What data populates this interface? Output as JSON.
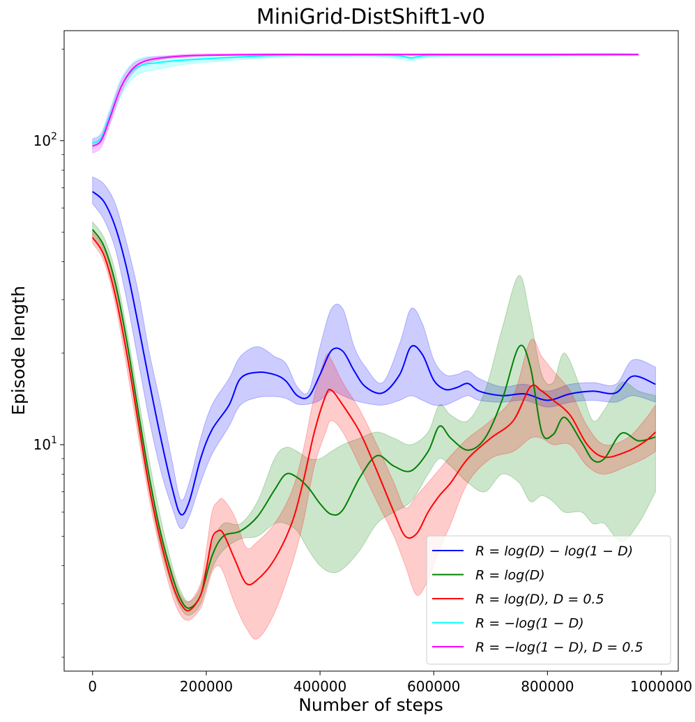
{
  "chart_data": {
    "type": "line",
    "title": "MiniGrid-DistShift1-v0",
    "xlabel": "Number of steps",
    "ylabel": "Episode length",
    "xlim": [
      -50000,
      1030000
    ],
    "ylim": [
      1.8,
      230
    ],
    "yscale": "log",
    "x_ticks": [
      0,
      200000,
      400000,
      600000,
      800000,
      1000000
    ],
    "y_ticks": [
      {
        "value": 10,
        "label_base": "10",
        "label_exp": "1"
      },
      {
        "value": 100,
        "label_base": "10",
        "label_exp": "2"
      }
    ],
    "legend_position": "lower right",
    "grid": false,
    "series": [
      {
        "name": "R = log(D) − log(1 − D)",
        "color": "#0000ff",
        "x": [
          0,
          20000,
          40000,
          60000,
          80000,
          100000,
          120000,
          140000,
          155000,
          170000,
          190000,
          210000,
          240000,
          260000,
          290000,
          320000,
          340000,
          360000,
          380000,
          400000,
          420000,
          440000,
          460000,
          480000,
          510000,
          540000,
          560000,
          580000,
          600000,
          620000,
          640000,
          660000,
          680000,
          720000,
          760000,
          800000,
          840000,
          880000,
          920000,
          950000,
          990000
        ],
        "y": [
          68,
          63,
          52,
          38,
          25,
          16,
          10.5,
          7.2,
          5.9,
          6.5,
          9.0,
          11.2,
          13.5,
          16.5,
          17.3,
          17.0,
          16.2,
          14.5,
          14.4,
          17.0,
          20.4,
          20.3,
          17.5,
          15.5,
          14.8,
          17.0,
          21.0,
          19.8,
          16.3,
          15.2,
          15.4,
          15.9,
          15.0,
          14.5,
          14.7,
          14.0,
          14.7,
          15.0,
          14.8,
          16.8,
          15.8
        ],
        "lower": [
          62,
          55,
          44,
          30,
          19,
          12,
          8.2,
          6.2,
          5.3,
          5.8,
          7.5,
          9.3,
          11.5,
          13.5,
          14.3,
          14.4,
          14.2,
          13.6,
          13.6,
          14.0,
          15.0,
          14.5,
          14.0,
          13.7,
          13.5,
          14.0,
          14.5,
          14.0,
          13.5,
          13.5,
          14.0,
          14.5,
          14.0,
          13.8,
          14.0,
          13.3,
          13.8,
          14.0,
          13.8,
          14.5,
          13.8
        ],
        "upper": [
          76,
          72,
          62,
          46,
          32,
          20,
          13.5,
          8.8,
          6.6,
          7.5,
          10.5,
          13.5,
          16.5,
          19.5,
          21.0,
          19.5,
          18.5,
          15.5,
          15.0,
          21.0,
          28.0,
          28.0,
          21.0,
          18.0,
          16.0,
          21.5,
          28.0,
          25.0,
          19.0,
          17.0,
          17.0,
          17.5,
          16.5,
          15.5,
          15.8,
          15.0,
          15.8,
          16.0,
          15.8,
          19.0,
          18.0
        ]
      },
      {
        "name": "R = log(D)",
        "color": "#008000",
        "x": [
          0,
          20000,
          40000,
          60000,
          80000,
          100000,
          120000,
          140000,
          155000,
          170000,
          190000,
          210000,
          230000,
          260000,
          290000,
          320000,
          340000,
          360000,
          380000,
          400000,
          420000,
          440000,
          470000,
          500000,
          530000,
          560000,
          590000,
          610000,
          630000,
          660000,
          690000,
          720000,
          750000,
          770000,
          790000,
          810000,
          830000,
          860000,
          880000,
          900000,
          930000,
          960000,
          990000
        ],
        "y": [
          51,
          45,
          34,
          22,
          13,
          7.8,
          5.1,
          3.7,
          3.1,
          2.9,
          3.2,
          4.3,
          5.0,
          5.2,
          5.8,
          7.1,
          8.0,
          7.8,
          7.2,
          6.4,
          5.9,
          6.1,
          7.8,
          9.2,
          8.5,
          8.2,
          9.5,
          11.5,
          10.5,
          9.6,
          10.5,
          14.0,
          21.0,
          18.0,
          11.0,
          10.8,
          12.3,
          10.2,
          8.9,
          9.0,
          10.9,
          10.3,
          10.6
        ],
        "lower": [
          48,
          42,
          31,
          20,
          11.5,
          7.0,
          4.6,
          3.4,
          2.9,
          2.75,
          3.0,
          3.9,
          4.5,
          4.9,
          5.0,
          5.5,
          5.5,
          5.2,
          4.5,
          4.0,
          3.8,
          3.9,
          4.5,
          5.5,
          6.0,
          6.5,
          8.0,
          9.0,
          8.5,
          7.5,
          7.0,
          8.0,
          7.5,
          6.5,
          6.8,
          6.5,
          6.0,
          6.0,
          5.5,
          5.5,
          4.8,
          5.5,
          7.0
        ],
        "upper": [
          54,
          48,
          37,
          24,
          14.5,
          8.8,
          5.7,
          4.0,
          3.3,
          3.05,
          3.4,
          4.7,
          5.5,
          5.5,
          6.5,
          9.0,
          9.8,
          9.5,
          9.0,
          9.0,
          9.5,
          10.0,
          10.5,
          11.0,
          10.5,
          10.0,
          11.0,
          13.5,
          12.5,
          12.0,
          15.0,
          24.0,
          36.0,
          26.0,
          17.0,
          16.0,
          20.0,
          15.0,
          12.0,
          13.0,
          16.0,
          15.0,
          14.5
        ]
      },
      {
        "name": "R = log(D), D = 0.5",
        "color": "#ff0000",
        "x": [
          0,
          20000,
          40000,
          60000,
          80000,
          100000,
          120000,
          140000,
          155000,
          170000,
          190000,
          200000,
          210000,
          220000,
          230000,
          250000,
          270000,
          290000,
          320000,
          350000,
          370000,
          390000,
          410000,
          420000,
          440000,
          470000,
          500000,
          530000,
          550000,
          570000,
          590000,
          610000,
          630000,
          660000,
          700000,
          740000,
          770000,
          790000,
          810000,
          840000,
          870000,
          900000,
          940000,
          970000,
          990000
        ],
        "y": [
          48,
          42,
          31,
          20,
          12,
          7.2,
          4.8,
          3.5,
          3.0,
          2.85,
          3.2,
          3.9,
          4.9,
          5.2,
          5.1,
          4.2,
          3.5,
          3.6,
          4.2,
          5.5,
          7.5,
          11.0,
          14.5,
          15.1,
          13.5,
          11.0,
          8.2,
          6.0,
          5.0,
          5.1,
          6.0,
          6.8,
          7.5,
          9.0,
          10.5,
          12.0,
          15.5,
          15.0,
          14.0,
          12.5,
          10.0,
          9.1,
          9.5,
          10.2,
          11.0
        ],
        "lower": [
          46,
          40,
          29,
          18,
          10.8,
          6.6,
          4.4,
          3.2,
          2.75,
          2.65,
          2.9,
          3.3,
          3.8,
          4.0,
          3.8,
          3.0,
          2.5,
          2.3,
          2.8,
          4.0,
          5.5,
          8.5,
          11.0,
          12.0,
          11.0,
          8.5,
          6.5,
          5.0,
          4.0,
          3.2,
          3.6,
          4.5,
          5.5,
          7.5,
          9.0,
          9.5,
          10.5,
          10.5,
          10.0,
          10.0,
          8.5,
          8.0,
          8.5,
          9.0,
          9.5
        ],
        "upper": [
          50,
          44,
          33,
          22,
          13.2,
          7.8,
          5.2,
          3.8,
          3.2,
          3.05,
          3.5,
          4.5,
          6.0,
          6.5,
          6.6,
          5.8,
          4.6,
          4.8,
          5.5,
          7.0,
          9.5,
          14.5,
          19.5,
          19.0,
          16.0,
          13.0,
          10.0,
          7.5,
          6.2,
          6.8,
          7.5,
          8.3,
          9.2,
          10.5,
          12.0,
          14.5,
          22.0,
          19.5,
          17.5,
          15.0,
          11.5,
          10.0,
          10.5,
          12.0,
          13.5
        ]
      },
      {
        "name": "R = −log(1 − D)",
        "color": "#00ffff",
        "x": [
          0,
          15000,
          30000,
          50000,
          70000,
          90000,
          110000,
          130000,
          160000,
          200000,
          250000,
          300000,
          350000,
          400000,
          450000,
          500000,
          540000,
          560000,
          580000,
          620000,
          700000,
          800000,
          900000,
          960000
        ],
        "y": [
          98,
          102,
          120,
          150,
          170,
          178,
          180,
          182,
          184,
          186,
          188,
          190,
          191,
          191,
          191,
          191,
          190,
          187,
          190,
          191,
          191,
          191,
          192,
          192
        ],
        "lower": [
          94,
          98,
          114,
          140,
          160,
          168,
          171,
          174,
          178,
          181,
          184,
          187,
          189,
          189,
          189,
          189,
          186,
          183,
          187,
          189,
          189,
          189,
          190,
          191
        ],
        "upper": [
          102,
          106,
          126,
          160,
          180,
          188,
          189,
          190,
          190,
          191,
          192,
          193,
          193,
          193,
          193,
          193,
          193,
          191,
          193,
          193,
          193,
          193,
          194,
          193
        ]
      },
      {
        "name": "R = −log(1 − D), D = 0.5",
        "color": "#ff00ff",
        "x": [
          0,
          15000,
          30000,
          50000,
          70000,
          90000,
          110000,
          130000,
          160000,
          200000,
          300000,
          400000,
          500000,
          600000,
          700000,
          800000,
          900000,
          960000
        ],
        "y": [
          96,
          100,
          118,
          150,
          172,
          182,
          186,
          188,
          190,
          191,
          192,
          192,
          192,
          192,
          192,
          192,
          192,
          192
        ],
        "lower": [
          91,
          95,
          112,
          143,
          166,
          178,
          183,
          186,
          188,
          190,
          191,
          191,
          191,
          191,
          191,
          191,
          191,
          191
        ],
        "upper": [
          101,
          105,
          124,
          157,
          178,
          186,
          189,
          190,
          192,
          193,
          193,
          193,
          193,
          193,
          193,
          193,
          193,
          193
        ]
      }
    ]
  }
}
